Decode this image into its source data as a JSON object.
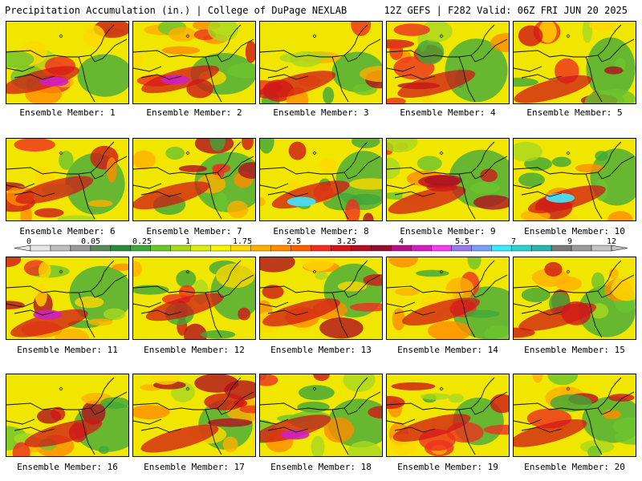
{
  "header": {
    "left": "Precipitation Accumulation (in.) | College of DuPage NEXLAB",
    "right": "12Z GEFS | F282 Valid: 06Z FRI JUN 20 2025"
  },
  "members": [
    {
      "label": "Ensemble Member: 1"
    },
    {
      "label": "Ensemble Member: 2"
    },
    {
      "label": "Ensemble Member: 3"
    },
    {
      "label": "Ensemble Member: 4"
    },
    {
      "label": "Ensemble Member: 5"
    },
    {
      "label": "Ensemble Member: 6"
    },
    {
      "label": "Ensemble Member: 7"
    },
    {
      "label": "Ensemble Member: 8"
    },
    {
      "label": "Ensemble Member: 9"
    },
    {
      "label": "Ensemble Member: 10"
    },
    {
      "label": "Ensemble Member: 11"
    },
    {
      "label": "Ensemble Member: 12"
    },
    {
      "label": "Ensemble Member: 13"
    },
    {
      "label": "Ensemble Member: 14"
    },
    {
      "label": "Ensemble Member: 15"
    },
    {
      "label": "Ensemble Member: 16"
    },
    {
      "label": "Ensemble Member: 17"
    },
    {
      "label": "Ensemble Member: 18"
    },
    {
      "label": "Ensemble Member: 19"
    },
    {
      "label": "Ensemble Member: 20"
    }
  ],
  "colorbar": {
    "tick_labels": [
      "0",
      "0.05",
      "0.25",
      "1",
      "1.75",
      "2.5",
      "3.25",
      "4",
      "5.5",
      "7",
      "9",
      "12"
    ],
    "colors": [
      "#e6e6e6",
      "#bfbfbf",
      "#9a9a9a",
      "#5a8a5a",
      "#2e8b3e",
      "#3ea83a",
      "#6cc42e",
      "#a8d820",
      "#dcec10",
      "#f6f600",
      "#ffd800",
      "#ffb000",
      "#ff8c00",
      "#ff6000",
      "#ee3020",
      "#d01818",
      "#b01020",
      "#901030",
      "#b0148c",
      "#d020c0",
      "#ee40ee",
      "#9a78ee",
      "#7aa0f6",
      "#40e8ff",
      "#30d0d0",
      "#30b0b0",
      "#7a7a7a",
      "#9c9c9c",
      "#c4c4c4"
    ]
  }
}
